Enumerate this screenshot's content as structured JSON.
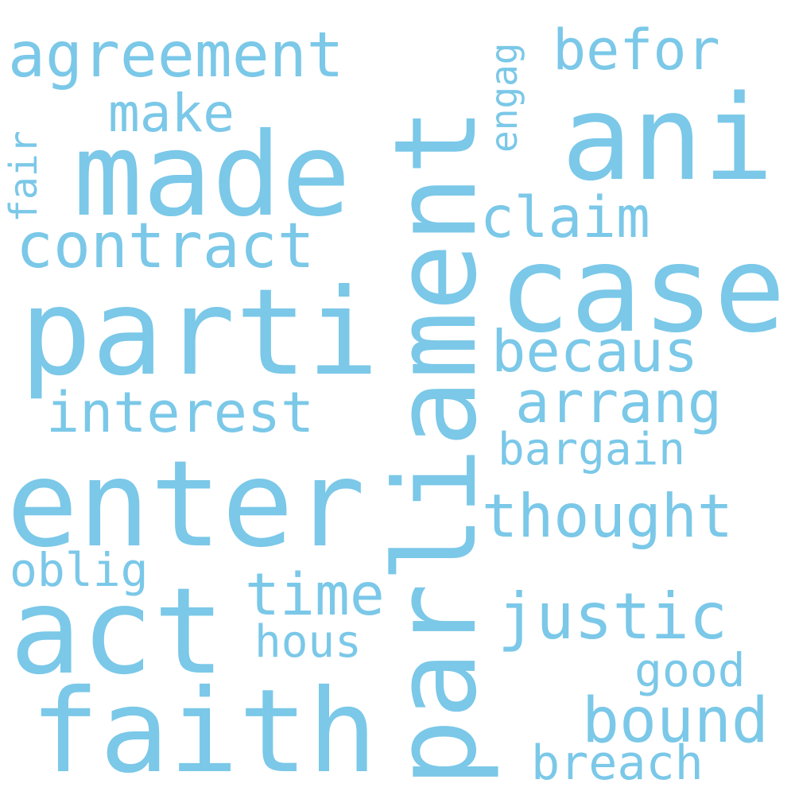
{
  "color": "#7bc8e8",
  "words": {
    "agreement": "agreement",
    "parliament": "parliament",
    "befor": "befor",
    "engag": "engag",
    "make": "make",
    "made": "made",
    "ani": "ani",
    "fair": "fair",
    "claim": "claim",
    "contract": "contract",
    "case": "case",
    "parti": "parti",
    "becaus": "becaus",
    "interest": "interest",
    "arrang": "arrang",
    "bargain": "bargain",
    "enter": "enter",
    "thought": "thought",
    "oblig": "oblig",
    "time": "time",
    "act": "act",
    "justic": "justic",
    "hous": "hous",
    "good": "good",
    "faith": "faith",
    "bound": "bound",
    "breach": "breach"
  }
}
